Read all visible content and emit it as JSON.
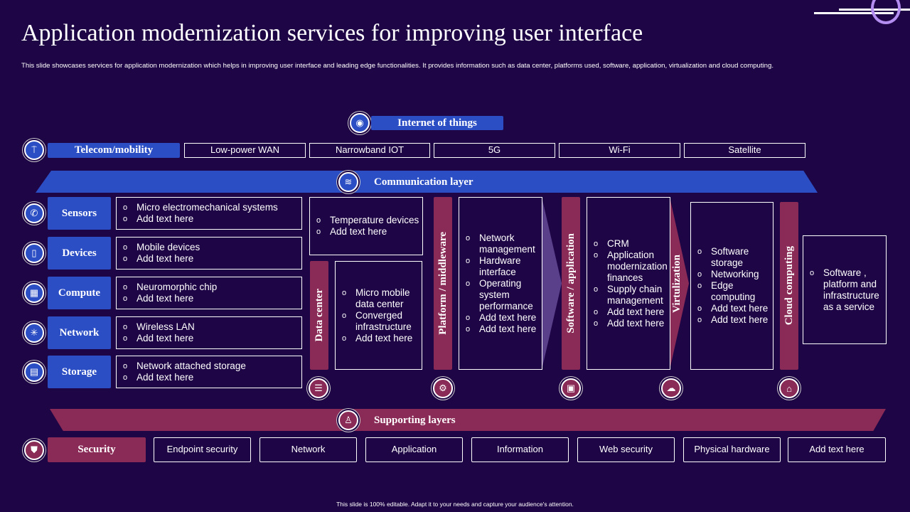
{
  "title": "Application modernization services for improving user interface",
  "subtitle": "This slide showcases services for application modernization which helps in improving user interface and leading edge functionalities. It provides information such as data center, platforms used, software, application, virtualization and cloud computing.",
  "footer": "This slide is 100% editable. Adapt it to your needs and capture your audience's attention.",
  "colors": {
    "background": "#1e0545",
    "blue": "#2c4ec4",
    "maroon": "#8a2a56",
    "accent_ring": "#b48ef0"
  },
  "iot": {
    "label": "Internet of things",
    "icon": "iot-hub-icon"
  },
  "telecom": {
    "label": "Telecom/mobility",
    "icon": "antenna-icon",
    "items": [
      "Low-power  WAN",
      "Narrowband  IOT",
      "5G",
      "Wi-Fi",
      "Satellite"
    ]
  },
  "communication": {
    "label": "Communication layer",
    "icon": "signal-icon"
  },
  "left_rows": [
    {
      "label": "Sensors",
      "icon": "sensor-icon",
      "items": [
        "Micro electromechanical  systems",
        "Add text here"
      ]
    },
    {
      "label": "Devices",
      "icon": "mobile-device-icon",
      "items": [
        "Mobile  devices",
        "Add text here"
      ]
    },
    {
      "label": "Compute",
      "icon": "chip-icon",
      "items": [
        "Neuromorphic  chip",
        "Add text here"
      ]
    },
    {
      "label": "Network",
      "icon": "network-icon",
      "items": [
        "Wireless LAN",
        "Add text here"
      ]
    },
    {
      "label": "Storage",
      "icon": "storage-icon",
      "items": [
        "Network attached storage",
        "Add text here"
      ]
    }
  ],
  "data_center": {
    "label": "Data center",
    "icon": "database-icon",
    "top_items": [
      "Temperature devices",
      "Add text here"
    ],
    "items": [
      "Micro mobile data center",
      "Converged infrastructure",
      "Add text here"
    ]
  },
  "platform": {
    "label": "Platform / middleware",
    "icon": "factory-icon",
    "items": [
      "Network management",
      "Hardware interface",
      "Operating system performance",
      "Add text here",
      "Add text here"
    ]
  },
  "software": {
    "label": "Software / application",
    "icon": "monitor-gear-icon",
    "items": [
      "CRM",
      "Application modernization finances",
      "Supply chain management",
      "Add text here",
      "Add text here"
    ]
  },
  "virtualization": {
    "label": "Virtulization",
    "icon": "cloud-server-icon",
    "items": [
      "Software storage",
      "Networking",
      "Edge computing",
      "Add text here",
      "Add text here"
    ]
  },
  "cloud": {
    "label": "Cloud computing",
    "icon": "cloud-laptop-icon",
    "items": [
      "Software ,  platform  and infrastructure as a service"
    ]
  },
  "supporting": {
    "label": "Supporting layers",
    "icon": "person-network-icon"
  },
  "security": {
    "label": "Security",
    "icon": "shield-icon",
    "items": [
      "Endpoint security",
      "Network",
      "Application",
      "Information",
      "Web security",
      "Physical hardware",
      "Add text here"
    ]
  }
}
